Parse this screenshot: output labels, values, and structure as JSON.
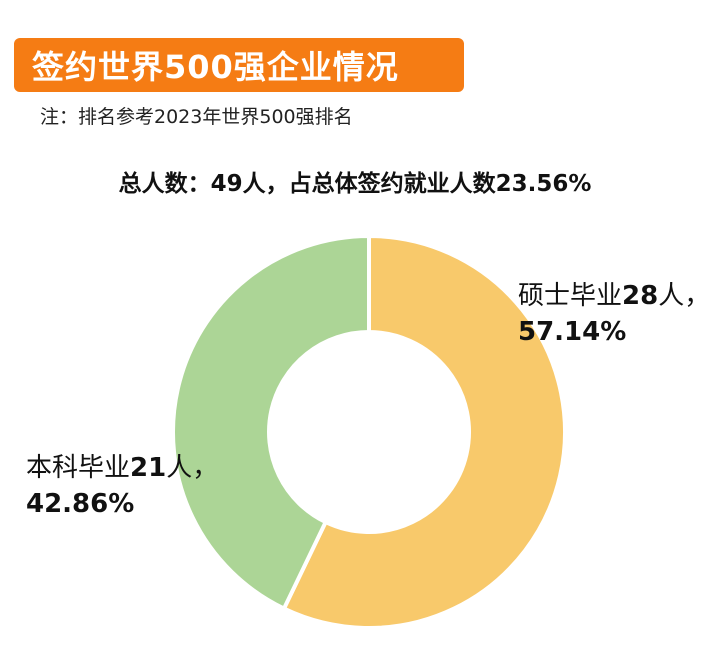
{
  "header": {
    "title": "签约世界500强企业情况",
    "note": "注：排名参考2023年世界500强排名",
    "summary": "总人数：49人，占总体签约就业人数23.56%"
  },
  "chart_data": {
    "type": "pie",
    "donut": true,
    "title": "签约世界500强企业情况",
    "categories": [
      "硕士毕业",
      "本科毕业"
    ],
    "values": [
      28,
      21
    ],
    "percentages": [
      57.14,
      42.86
    ],
    "colors": [
      "#f8c96b",
      "#acd596"
    ],
    "start_angle_deg": 0,
    "labels": [
      {
        "prefix": "硕士毕业",
        "count": "28",
        "suffix": "人，",
        "pct": "57.14%"
      },
      {
        "prefix": "本科毕业",
        "count": "21",
        "suffix": "人，",
        "pct": "42.86%"
      }
    ]
  }
}
